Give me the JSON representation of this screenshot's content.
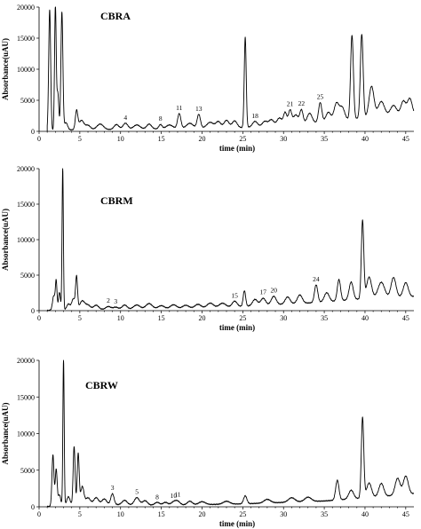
{
  "chart_data": [
    {
      "type": "line",
      "title": "CBRA",
      "xlabel": "time  (min)",
      "ylabel": "Absorbance(uAU)",
      "xlim": [
        0,
        46
      ],
      "ylim": [
        0,
        20000
      ],
      "xticks": [
        "0",
        "5",
        "10",
        "15",
        "20",
        "25",
        "30",
        "35",
        "40",
        "45"
      ],
      "yticks": [
        "0",
        "5000",
        "10000",
        "15000",
        "20000"
      ],
      "baseline": [
        [
          0,
          0
        ],
        [
          4,
          250
        ],
        [
          10,
          300
        ],
        [
          15,
          400
        ],
        [
          20,
          550
        ],
        [
          25,
          600
        ],
        [
          30,
          1000
        ],
        [
          35,
          1500
        ],
        [
          40,
          2200
        ],
        [
          46,
          2500
        ]
      ],
      "peaks": [
        [
          1.3,
          19500,
          0.12
        ],
        [
          2.0,
          20000,
          0.1
        ],
        [
          2.3,
          6000,
          0.12
        ],
        [
          2.8,
          19000,
          0.12
        ],
        [
          3.3,
          1200,
          0.2
        ],
        [
          4.6,
          3000,
          0.15
        ],
        [
          5.2,
          1500,
          0.3
        ],
        [
          6.0,
          700,
          0.3
        ],
        [
          7.5,
          900,
          0.4
        ],
        [
          9.5,
          800,
          0.3
        ],
        [
          10.6,
          1000,
          0.3
        ],
        [
          12.0,
          700,
          0.4
        ],
        [
          13.5,
          800,
          0.3
        ],
        [
          14.9,
          700,
          0.2
        ],
        [
          16.0,
          600,
          0.4
        ],
        [
          17.2,
          2400,
          0.2
        ],
        [
          18.5,
          800,
          0.4
        ],
        [
          19.6,
          2200,
          0.2
        ],
        [
          21.0,
          900,
          0.4
        ],
        [
          22.0,
          1000,
          0.3
        ],
        [
          23.0,
          1200,
          0.3
        ],
        [
          24.0,
          1100,
          0.3
        ],
        [
          25.3,
          14500,
          0.12
        ],
        [
          26.5,
          900,
          0.3
        ],
        [
          27.7,
          800,
          0.3
        ],
        [
          28.5,
          1000,
          0.3
        ],
        [
          29.5,
          1200,
          0.3
        ],
        [
          30.2,
          2000,
          0.2
        ],
        [
          30.8,
          2300,
          0.2
        ],
        [
          31.5,
          1500,
          0.3
        ],
        [
          32.2,
          2200,
          0.2
        ],
        [
          33.2,
          1600,
          0.3
        ],
        [
          34.5,
          3200,
          0.2
        ],
        [
          35.5,
          1500,
          0.3
        ],
        [
          36.5,
          2800,
          0.3
        ],
        [
          37.2,
          2000,
          0.3
        ],
        [
          38.4,
          13500,
          0.17
        ],
        [
          39.6,
          13500,
          0.17
        ],
        [
          40.8,
          5000,
          0.3
        ],
        [
          42.0,
          2500,
          0.4
        ],
        [
          43.5,
          1800,
          0.4
        ],
        [
          44.7,
          2400,
          0.3
        ],
        [
          45.5,
          2800,
          0.3
        ]
      ],
      "annotations": [
        {
          "text": "4",
          "x": 10.6,
          "y": 1000
        },
        {
          "text": "8",
          "x": 14.9,
          "y": 700
        },
        {
          "text": "11",
          "x": 17.2,
          "y": 2400
        },
        {
          "text": "13",
          "x": 19.6,
          "y": 2200
        },
        {
          "text": "18",
          "x": 26.5,
          "y": 900
        },
        {
          "text": "21",
          "x": 30.8,
          "y": 2300
        },
        {
          "text": "22",
          "x": 32.2,
          "y": 2200
        },
        {
          "text": "25",
          "x": 34.5,
          "y": 3200
        }
      ]
    },
    {
      "type": "line",
      "title": "CBRM",
      "xlabel": "time  (min)",
      "ylabel": "Absorbance(uAU)",
      "xlim": [
        0,
        46
      ],
      "ylim": [
        0,
        20000
      ],
      "xticks": [
        "0",
        "5",
        "10",
        "15",
        "20",
        "25",
        "30",
        "35",
        "40",
        "45"
      ],
      "yticks": [
        "0",
        "5000",
        "10000",
        "15000",
        "20000"
      ],
      "baseline": [
        [
          0,
          0
        ],
        [
          4,
          150
        ],
        [
          10,
          200
        ],
        [
          15,
          200
        ],
        [
          20,
          300
        ],
        [
          25,
          600
        ],
        [
          30,
          900
        ],
        [
          35,
          1200
        ],
        [
          40,
          1700
        ],
        [
          46,
          2000
        ]
      ],
      "peaks": [
        [
          1.8,
          2000,
          0.15
        ],
        [
          2.1,
          4000,
          0.1
        ],
        [
          2.5,
          2500,
          0.12
        ],
        [
          2.9,
          20000,
          0.08
        ],
        [
          3.6,
          800,
          0.2
        ],
        [
          4.2,
          1500,
          0.2
        ],
        [
          4.6,
          4500,
          0.12
        ],
        [
          5.3,
          1200,
          0.3
        ],
        [
          6.0,
          600,
          0.3
        ],
        [
          7.0,
          600,
          0.3
        ],
        [
          8.5,
          400,
          0.3
        ],
        [
          9.4,
          300,
          0.3
        ],
        [
          10.5,
          600,
          0.3
        ],
        [
          12.0,
          600,
          0.4
        ],
        [
          13.5,
          800,
          0.4
        ],
        [
          15.0,
          500,
          0.4
        ],
        [
          16.5,
          600,
          0.4
        ],
        [
          18.0,
          500,
          0.4
        ],
        [
          19.5,
          600,
          0.4
        ],
        [
          21.0,
          700,
          0.4
        ],
        [
          22.5,
          600,
          0.4
        ],
        [
          24.0,
          800,
          0.3
        ],
        [
          25.2,
          2200,
          0.15
        ],
        [
          26.5,
          900,
          0.3
        ],
        [
          27.5,
          1000,
          0.3
        ],
        [
          28.8,
          1200,
          0.3
        ],
        [
          30.5,
          1000,
          0.3
        ],
        [
          32.0,
          1200,
          0.3
        ],
        [
          34.0,
          2500,
          0.2
        ],
        [
          35.3,
          1300,
          0.3
        ],
        [
          36.8,
          3000,
          0.2
        ],
        [
          38.3,
          2500,
          0.25
        ],
        [
          39.7,
          11000,
          0.15
        ],
        [
          40.5,
          3000,
          0.3
        ],
        [
          42.0,
          2200,
          0.4
        ],
        [
          43.5,
          2800,
          0.3
        ],
        [
          45.0,
          2000,
          0.3
        ]
      ],
      "annotations": [
        {
          "text": "2",
          "x": 8.5,
          "y": 400
        },
        {
          "text": "3",
          "x": 9.4,
          "y": 300
        },
        {
          "text": "15",
          "x": 24.0,
          "y": 800
        },
        {
          "text": "17",
          "x": 27.5,
          "y": 1000
        },
        {
          "text": "20",
          "x": 28.8,
          "y": 1200
        },
        {
          "text": "24",
          "x": 34.0,
          "y": 2500
        }
      ]
    },
    {
      "type": "line",
      "title": "CBRW",
      "xlabel": "time  (min)",
      "ylabel": "Absorbance(uAU)",
      "xlim": [
        0,
        46
      ],
      "ylim": [
        0,
        20000
      ],
      "xticks": [
        "0",
        "5",
        "10",
        "15",
        "20",
        "25",
        "30",
        "35",
        "40",
        "45"
      ],
      "yticks": [
        "0",
        "5000",
        "10000",
        "15000",
        "20000"
      ],
      "baseline": [
        [
          0,
          0
        ],
        [
          4,
          200
        ],
        [
          10,
          300
        ],
        [
          15,
          200
        ],
        [
          20,
          300
        ],
        [
          25,
          400
        ],
        [
          30,
          600
        ],
        [
          35,
          800
        ],
        [
          40,
          1200
        ],
        [
          46,
          1800
        ]
      ],
      "peaks": [
        [
          1.7,
          7000,
          0.12
        ],
        [
          2.1,
          5000,
          0.12
        ],
        [
          2.5,
          1500,
          0.15
        ],
        [
          3.0,
          20000,
          0.08
        ],
        [
          3.6,
          1200,
          0.2
        ],
        [
          4.3,
          8000,
          0.12
        ],
        [
          4.8,
          7000,
          0.12
        ],
        [
          5.3,
          2500,
          0.2
        ],
        [
          6.0,
          1000,
          0.3
        ],
        [
          7.0,
          1000,
          0.3
        ],
        [
          8.0,
          800,
          0.3
        ],
        [
          9.0,
          1500,
          0.2
        ],
        [
          10.5,
          600,
          0.3
        ],
        [
          12.0,
          1000,
          0.3
        ],
        [
          13.0,
          600,
          0.3
        ],
        [
          14.5,
          400,
          0.3
        ],
        [
          15.5,
          400,
          0.3
        ],
        [
          16.5,
          400,
          0.3
        ],
        [
          17.0,
          500,
          0.3
        ],
        [
          18.5,
          500,
          0.3
        ],
        [
          20.0,
          400,
          0.4
        ],
        [
          23.0,
          400,
          0.4
        ],
        [
          25.3,
          1100,
          0.2
        ],
        [
          28.0,
          500,
          0.4
        ],
        [
          31.0,
          600,
          0.4
        ],
        [
          33.0,
          600,
          0.4
        ],
        [
          36.6,
          2700,
          0.2
        ],
        [
          38.3,
          1200,
          0.3
        ],
        [
          39.7,
          11000,
          0.15
        ],
        [
          40.5,
          2000,
          0.3
        ],
        [
          42.0,
          1800,
          0.3
        ],
        [
          44.0,
          2300,
          0.3
        ],
        [
          45.0,
          2500,
          0.3
        ]
      ],
      "annotations": [
        {
          "text": "3",
          "x": 9.0,
          "y": 1500
        },
        {
          "text": "5",
          "x": 12.0,
          "y": 1000
        },
        {
          "text": "8",
          "x": 14.5,
          "y": 400
        },
        {
          "text": "10",
          "x": 16.5,
          "y": 400
        },
        {
          "text": "11",
          "x": 17.0,
          "y": 500
        }
      ]
    }
  ]
}
